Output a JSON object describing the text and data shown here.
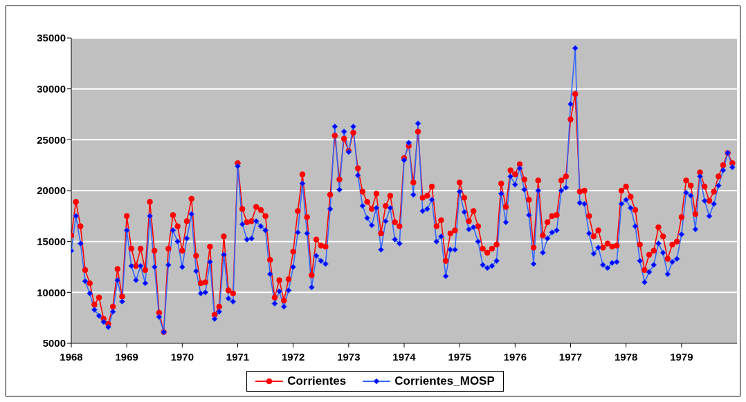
{
  "chart_data": {
    "type": "line",
    "x": [
      "1968-01",
      "1968-02",
      "1968-03",
      "1968-04",
      "1968-05",
      "1968-06",
      "1968-07",
      "1968-08",
      "1968-09",
      "1968-10",
      "1968-11",
      "1968-12",
      "1969-01",
      "1969-02",
      "1969-03",
      "1969-04",
      "1969-05",
      "1969-06",
      "1969-07",
      "1969-08",
      "1969-09",
      "1969-10",
      "1969-11",
      "1969-12",
      "1970-01",
      "1970-02",
      "1970-03",
      "1970-04",
      "1970-05",
      "1970-06",
      "1970-07",
      "1970-08",
      "1970-09",
      "1970-10",
      "1970-11",
      "1970-12",
      "1971-01",
      "1971-02",
      "1971-03",
      "1971-04",
      "1971-05",
      "1971-06",
      "1971-07",
      "1971-08",
      "1971-09",
      "1971-10",
      "1971-11",
      "1971-12",
      "1972-01",
      "1972-02",
      "1972-03",
      "1972-04",
      "1972-05",
      "1972-06",
      "1972-07",
      "1972-08",
      "1972-09",
      "1972-10",
      "1972-11",
      "1972-12",
      "1973-01",
      "1973-02",
      "1973-03",
      "1973-04",
      "1973-05",
      "1973-06",
      "1973-07",
      "1973-08",
      "1973-09",
      "1973-10",
      "1973-11",
      "1973-12",
      "1974-01",
      "1974-02",
      "1974-03",
      "1974-04",
      "1974-05",
      "1974-06",
      "1974-07",
      "1974-08",
      "1974-09",
      "1974-10",
      "1974-11",
      "1974-12",
      "1975-01",
      "1975-02",
      "1975-03",
      "1975-04",
      "1975-05",
      "1975-06",
      "1975-07",
      "1975-08",
      "1975-09",
      "1975-10",
      "1975-11",
      "1975-12",
      "1976-01",
      "1976-02",
      "1976-03",
      "1976-04",
      "1976-05",
      "1976-06",
      "1976-07",
      "1976-08",
      "1976-09",
      "1976-10",
      "1976-11",
      "1976-12",
      "1977-01",
      "1977-02",
      "1977-03",
      "1977-04",
      "1977-05",
      "1977-06",
      "1977-07",
      "1977-08",
      "1977-09",
      "1977-10",
      "1977-11",
      "1977-12",
      "1978-01",
      "1978-02",
      "1978-03",
      "1978-04",
      "1978-05",
      "1978-06",
      "1978-07",
      "1978-08",
      "1978-09",
      "1978-10",
      "1978-11",
      "1978-12",
      "1979-01",
      "1979-02",
      "1979-03",
      "1979-04",
      "1979-05",
      "1979-06",
      "1979-07",
      "1979-08",
      "1979-09",
      "1979-10",
      "1979-11",
      "1979-12"
    ],
    "series": [
      {
        "name": "Corrientes",
        "color": "#ff0000",
        "marker": "circle",
        "values": [
          15600,
          18900,
          16500,
          12200,
          10900,
          8800,
          9500,
          7400,
          6900,
          8600,
          12300,
          9600,
          17500,
          14300,
          12600,
          14300,
          12200,
          18900,
          14100,
          8000,
          6100,
          14300,
          17600,
          16500,
          14100,
          17000,
          19200,
          13600,
          10900,
          11000,
          14500,
          7800,
          8600,
          15500,
          10200,
          9900,
          22700,
          18200,
          16900,
          17000,
          18400,
          18100,
          17500,
          13200,
          9500,
          11200,
          9200,
          11300,
          14000,
          18000,
          21600,
          17400,
          11700,
          15200,
          14600,
          14500,
          19600,
          25400,
          21100,
          25100,
          23900,
          25700,
          22200,
          19900,
          18900,
          18200,
          19700,
          15800,
          18500,
          19500,
          16900,
          16500,
          23200,
          24400,
          20800,
          25800,
          19300,
          19500,
          20400,
          16500,
          17100,
          13100,
          15800,
          16100,
          20800,
          19300,
          17000,
          18000,
          16500,
          14300,
          13900,
          14300,
          14700,
          20700,
          18400,
          22000,
          21600,
          22600,
          21100,
          19100,
          14400,
          21000,
          15600,
          16900,
          17500,
          17600,
          21000,
          21400,
          27000,
          29500,
          19900,
          20000,
          17500,
          15500,
          16100,
          14400,
          14800,
          14500,
          14600,
          20000,
          20400,
          19400,
          18100,
          14700,
          12200,
          13700,
          14100,
          16400,
          15500,
          13300,
          14700,
          15000,
          17400,
          21000,
          20500,
          17700,
          21800,
          20400,
          19000,
          19900,
          21400,
          22500,
          23700,
          22700
        ]
      },
      {
        "name": "Corrientes_MOSP",
        "color": "#3366ff",
        "marker": "diamond",
        "values": [
          14100,
          17500,
          14800,
          11100,
          9900,
          8300,
          7700,
          7100,
          6600,
          8100,
          11200,
          9100,
          16100,
          12600,
          11200,
          12600,
          10900,
          17500,
          12500,
          7600,
          6100,
          12700,
          16100,
          15000,
          12500,
          15300,
          17700,
          12100,
          9900,
          10000,
          13000,
          7400,
          8100,
          13700,
          9400,
          9100,
          22400,
          16700,
          15200,
          15300,
          17000,
          16500,
          16100,
          11800,
          8900,
          10100,
          8600,
          10200,
          12500,
          15900,
          20700,
          15800,
          10500,
          13600,
          13100,
          12800,
          18200,
          26300,
          20100,
          25800,
          23800,
          26300,
          21500,
          18500,
          17300,
          16600,
          18300,
          14200,
          17000,
          18300,
          15200,
          14800,
          23000,
          24700,
          19600,
          26600,
          18000,
          18200,
          19100,
          15000,
          15500,
          11600,
          14200,
          14200,
          19900,
          17900,
          16200,
          16400,
          15000,
          12700,
          12400,
          12600,
          13100,
          19700,
          16900,
          21400,
          20600,
          22200,
          20100,
          17600,
          12800,
          20000,
          13900,
          15300,
          15900,
          16100,
          20000,
          20300,
          28500,
          34000,
          18800,
          18700,
          15800,
          13800,
          14400,
          12700,
          12400,
          12900,
          13000,
          18700,
          19100,
          18300,
          16500,
          13100,
          11000,
          12000,
          12700,
          14800,
          13900,
          11800,
          13000,
          13300,
          15700,
          19800,
          19500,
          16200,
          21400,
          19000,
          17500,
          18700,
          20500,
          22000,
          23700,
          22300
        ]
      }
    ],
    "xlim": [
      "1968-01",
      "1980-01"
    ],
    "xticks": [
      "1968",
      "1969",
      "1970",
      "1971",
      "1972",
      "1973",
      "1974",
      "1975",
      "1976",
      "1977",
      "1978",
      "1979"
    ],
    "ylim": [
      5000,
      35000
    ],
    "yticks": [
      5000,
      10000,
      15000,
      20000,
      25000,
      30000,
      35000
    ],
    "grid": "y",
    "legend": "bottom"
  }
}
